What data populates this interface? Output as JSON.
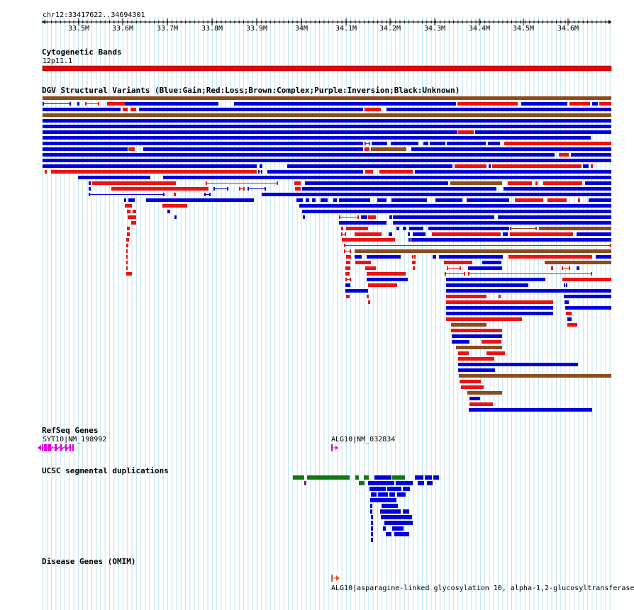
{
  "header": {
    "location": "chr12:33417622..34694301"
  },
  "ruler": {
    "ticks": [
      "33.5M",
      "33.6M",
      "33.7M",
      "33.8M",
      "33.9M",
      "34M",
      "34.1M",
      "34.2M",
      "34.3M",
      "34.4M",
      "34.5M",
      "34.6M"
    ]
  },
  "tracks": {
    "cyto": {
      "title": "Cytogenetic Bands",
      "band": "12p11.1",
      "color": "#e8000b"
    },
    "dgv": {
      "title": "DGV Structural Variants (Blue:Gain;Red:Loss;Brown:Complex;Purple:Inversion;Black:Unknown)",
      "colors": {
        "gain": "#0000dd",
        "loss": "#ee1111",
        "complex": "#8b4b1a"
      }
    },
    "refseq": {
      "title": "RefSeq Genes",
      "genes": [
        {
          "label": "SYT10|NM_198992",
          "color": "#dd00dd"
        },
        {
          "label": "ALG10|NM_032834",
          "color": "#dd00dd"
        }
      ]
    },
    "segdup": {
      "title": "UCSC segmental duplications",
      "colors": {
        "main": "#0000dd",
        "green": "#117711",
        "purple": "#772277"
      }
    },
    "omim": {
      "title": "Disease Genes (OMIM)",
      "gene": {
        "label": "ALG10|asparagine-linked glycosylation 10, alpha-1,2-glucosyltransferase",
        "color": "#ee5522"
      }
    }
  }
}
